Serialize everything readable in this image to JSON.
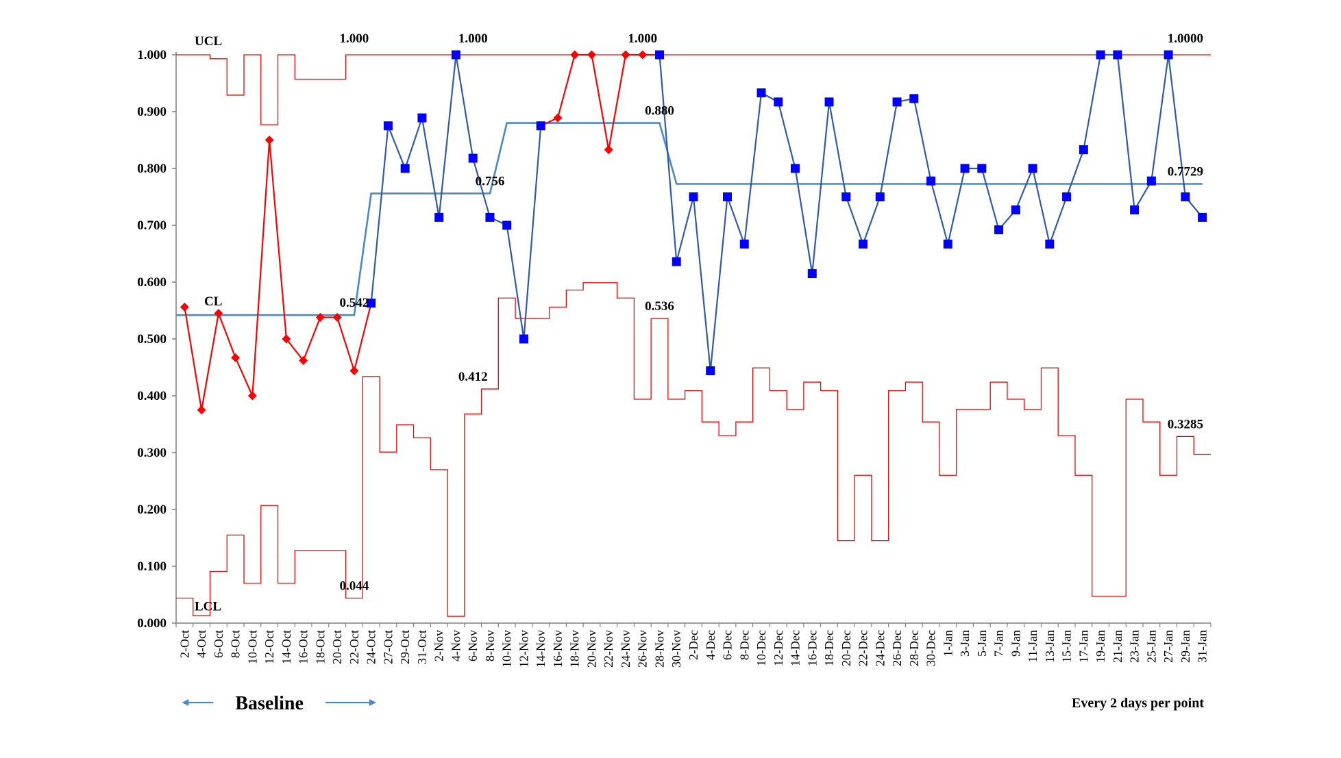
{
  "chart_data": {
    "type": "line",
    "title": "",
    "xlabel": "",
    "ylabel": "",
    "ylim": [
      0,
      1
    ],
    "ytick_labels": [
      "0.000",
      "0.100",
      "0.200",
      "0.300",
      "0.400",
      "0.500",
      "0.600",
      "0.700",
      "0.800",
      "0.900",
      "1.000"
    ],
    "x": [
      "2-Oct",
      "4-Oct",
      "6-Oct",
      "8-Oct",
      "10-Oct",
      "12-Oct",
      "14-Oct",
      "16-Oct",
      "18-Oct",
      "20-Oct",
      "22-Oct",
      "24-Oct",
      "27-Oct",
      "29-Oct",
      "31-Oct",
      "2-Nov",
      "4-Nov",
      "6-Nov",
      "8-Nov",
      "10-Nov",
      "12-Nov",
      "14-Nov",
      "16-Nov",
      "18-Nov",
      "20-Nov",
      "22-Nov",
      "24-Nov",
      "26-Nov",
      "28-Nov",
      "30-Nov",
      "2-Dec",
      "4-Dec",
      "6-Dec",
      "8-Dec",
      "10-Dec",
      "12-Dec",
      "14-Dec",
      "16-Dec",
      "18-Dec",
      "20-Dec",
      "22-Dec",
      "24-Dec",
      "26-Dec",
      "28-Dec",
      "30-Dec",
      "1-Jan",
      "3-Jan",
      "5-Jan",
      "7-Jan",
      "9-Jan",
      "11-Jan",
      "13-Jan",
      "15-Jan",
      "17-Jan",
      "19-Jan",
      "21-Jan",
      "23-Jan",
      "25-Jan",
      "27-Jan",
      "29-Jan",
      "31-Jan"
    ],
    "series": [
      {
        "name": "baseline-proportion",
        "color": "#ff0000",
        "marker": "diamond",
        "values": [
          0.556,
          0.375,
          0.545,
          0.467,
          0.4,
          0.85,
          0.5,
          0.462,
          0.538,
          0.538,
          0.444,
          0.563,
          null,
          null,
          null,
          null,
          null,
          null,
          null,
          null,
          null,
          0.875,
          0.889,
          1.0,
          1.0,
          0.833,
          1.0,
          1.0,
          1.0,
          null,
          null,
          null,
          null,
          null,
          null,
          null,
          null,
          null,
          null,
          null,
          null,
          null,
          null,
          null,
          null,
          null,
          null,
          null,
          null,
          null,
          null,
          null,
          null,
          null,
          null,
          null,
          null,
          null,
          null,
          null,
          null
        ]
      },
      {
        "name": "post-baseline-proportion",
        "color": "#0000ff",
        "line_color": "#2e5aa8",
        "marker": "square",
        "values": [
          null,
          null,
          null,
          null,
          null,
          null,
          null,
          null,
          null,
          null,
          null,
          0.563,
          0.875,
          0.8,
          0.889,
          0.714,
          1.0,
          0.818,
          0.714,
          0.7,
          0.5,
          0.875,
          null,
          null,
          null,
          null,
          null,
          null,
          1.0,
          0.636,
          0.75,
          0.444,
          0.75,
          0.667,
          0.933,
          0.917,
          0.8,
          0.615,
          0.917,
          0.75,
          0.667,
          0.75,
          0.917,
          0.923,
          0.778,
          0.667,
          0.8,
          0.8,
          0.692,
          0.727,
          0.8,
          0.667,
          0.75,
          0.833,
          1.0,
          1.0,
          0.727,
          0.778,
          1.0,
          0.75,
          0.714
        ]
      },
      {
        "name": "CL",
        "color": "#4a8ac4",
        "values": [
          0.542,
          0.542,
          0.542,
          0.542,
          0.542,
          0.542,
          0.542,
          0.542,
          0.542,
          0.542,
          0.542,
          0.756,
          0.756,
          0.756,
          0.756,
          0.756,
          0.756,
          0.756,
          0.756,
          0.88,
          0.88,
          0.88,
          0.88,
          0.88,
          0.88,
          0.88,
          0.88,
          0.88,
          0.88,
          0.7729,
          0.7729,
          0.7729,
          0.7729,
          0.7729,
          0.7729,
          0.7729,
          0.7729,
          0.7729,
          0.7729,
          0.7729,
          0.7729,
          0.7729,
          0.7729,
          0.7729,
          0.7729,
          0.7729,
          0.7729,
          0.7729,
          0.7729,
          0.7729,
          0.7729,
          0.7729,
          0.7729,
          0.7729,
          0.7729,
          0.7729,
          0.7729,
          0.7729,
          0.7729,
          0.7729,
          0.7729
        ]
      },
      {
        "name": "UCL",
        "color": "#ff0000",
        "step": true,
        "values": [
          1.0,
          1.0,
          0.993,
          0.929,
          1.0,
          0.877,
          1.0,
          0.957,
          0.957,
          0.957,
          1.0,
          1.0,
          1.0,
          1.0,
          1.0,
          1.0,
          1.0,
          1.0,
          1.0,
          1.0,
          1.0,
          1.0,
          1.0,
          1.0,
          1.0,
          1.0,
          1.0,
          1.0,
          1.0,
          1.0,
          1.0,
          1.0,
          1.0,
          1.0,
          1.0,
          1.0,
          1.0,
          1.0,
          1.0,
          1.0,
          1.0,
          1.0,
          1.0,
          1.0,
          1.0,
          1.0,
          1.0,
          1.0,
          1.0,
          1.0,
          1.0,
          1.0,
          1.0,
          1.0,
          1.0,
          1.0,
          1.0,
          1.0,
          1.0,
          1.0,
          1.0
        ]
      },
      {
        "name": "LCL",
        "color": "#ff0000",
        "step": true,
        "values": [
          0.044,
          0.013,
          0.091,
          0.155,
          0.07,
          0.207,
          0.07,
          0.128,
          0.128,
          0.128,
          0.044,
          0.434,
          0.301,
          0.349,
          0.326,
          0.27,
          0.012,
          0.368,
          0.412,
          0.572,
          0.536,
          0.536,
          0.556,
          0.586,
          0.599,
          0.599,
          0.572,
          0.394,
          0.536,
          0.394,
          0.409,
          0.354,
          0.33,
          0.354,
          0.449,
          0.409,
          0.376,
          0.424,
          0.409,
          0.145,
          0.26,
          0.145,
          0.409,
          0.424,
          0.354,
          0.26,
          0.376,
          0.376,
          0.424,
          0.394,
          0.376,
          0.449,
          0.33,
          0.26,
          0.047,
          0.047,
          0.394,
          0.354,
          0.26,
          0.3285,
          0.297
        ]
      }
    ],
    "series_labels": {
      "ucl": "UCL",
      "cl": "CL",
      "lcl": "LCL"
    },
    "annotations": [
      {
        "text": "1.000",
        "x": "22-Oct",
        "y": 1.0
      },
      {
        "text": "1.000",
        "x": "6-Nov",
        "y": 1.0
      },
      {
        "text": "1.000",
        "x": "26-Nov",
        "y": 1.0
      },
      {
        "text": "1.0000",
        "x": "29-Jan",
        "y": 1.0
      },
      {
        "text": "0.880",
        "x": "28-Nov",
        "y": 0.88
      },
      {
        "text": "0.756",
        "x": "8-Nov",
        "y": 0.756
      },
      {
        "text": "0.7729",
        "x": "29-Jan",
        "y": 0.7729
      },
      {
        "text": "0.542",
        "x": "22-Oct",
        "y": 0.542
      },
      {
        "text": "0.536",
        "x": "28-Nov",
        "y": 0.536
      },
      {
        "text": "0.412",
        "x": "6-Nov",
        "y": 0.412
      },
      {
        "text": "0.3285",
        "x": "29-Jan",
        "y": 0.3285
      },
      {
        "text": "0.044",
        "x": "22-Oct",
        "y": 0.044
      }
    ],
    "grid": false,
    "baseline": {
      "label": "Baseline",
      "from": "2-Oct",
      "to": "22-Oct"
    },
    "footnote": "Every 2 days per point"
  }
}
